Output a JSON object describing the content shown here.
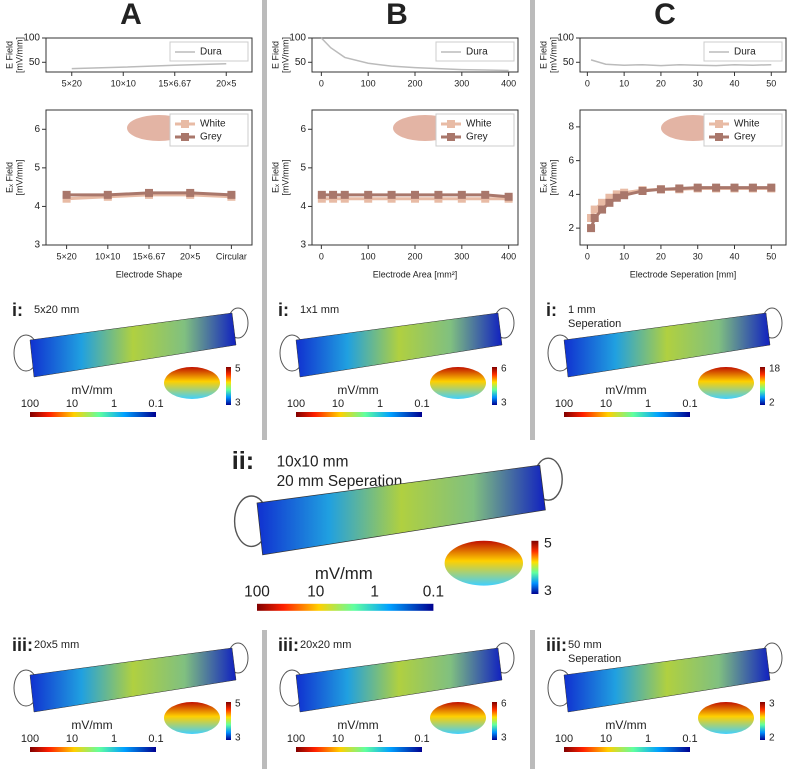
{
  "headers": [
    "A",
    "B",
    "C"
  ],
  "chart_data": [
    {
      "type": "line",
      "ylabel": [
        "E Field",
        "[mV/mm]"
      ],
      "categories": [
        "5×20",
        "10×10",
        "15×6.67",
        "20×5"
      ],
      "series": [
        {
          "name": "Dura",
          "color": "#bbbbbb",
          "values": [
            37,
            40,
            44,
            47
          ]
        }
      ],
      "ylim": [
        30,
        100
      ],
      "yticks": [
        50,
        100
      ],
      "legend": "upper right"
    },
    {
      "type": "line",
      "ylabel": [
        "Eₓ Field",
        "[mV/mm]"
      ],
      "xlabel": "Electrode Shape",
      "categories": [
        "5×20",
        "10×10",
        "15×6.67",
        "20×5",
        "Circular"
      ],
      "series": [
        {
          "name": "White",
          "color": "#e8bba5",
          "marker": "square",
          "values": [
            4.2,
            4.25,
            4.3,
            4.3,
            4.25
          ]
        },
        {
          "name": "Grey",
          "color": "#a9776b",
          "marker": "square",
          "values": [
            4.3,
            4.3,
            4.35,
            4.35,
            4.3
          ]
        }
      ],
      "ylim": [
        3,
        6.5
      ],
      "yticks": [
        3,
        4,
        5,
        6
      ],
      "legend": "upper right"
    },
    {
      "type": "line",
      "ylabel": [
        "E Field",
        "[mV/mm]"
      ],
      "x": [
        0,
        20,
        50,
        100,
        150,
        200,
        250,
        300,
        350,
        400
      ],
      "series": [
        {
          "name": "Dura",
          "color": "#bbbbbb",
          "values": [
            100,
            80,
            60,
            48,
            42,
            39,
            37,
            35,
            34,
            33
          ]
        }
      ],
      "xlim": [
        -20,
        420
      ],
      "xticks": [
        0,
        100,
        200,
        300,
        400
      ],
      "ylim": [
        30,
        100
      ],
      "yticks": [
        50,
        100
      ],
      "legend": "upper right"
    },
    {
      "type": "line",
      "ylabel": [
        "Eₓ Field",
        "[mV/mm]"
      ],
      "xlabel": "Electrode Area [mm²]",
      "x": [
        1,
        25,
        50,
        100,
        150,
        200,
        250,
        300,
        350,
        400
      ],
      "series": [
        {
          "name": "White",
          "color": "#e8bba5",
          "marker": "square",
          "values": [
            4.2,
            4.2,
            4.2,
            4.2,
            4.2,
            4.2,
            4.2,
            4.2,
            4.2,
            4.2
          ]
        },
        {
          "name": "Grey",
          "color": "#a9776b",
          "marker": "square",
          "values": [
            4.3,
            4.3,
            4.3,
            4.3,
            4.3,
            4.3,
            4.3,
            4.3,
            4.3,
            4.25
          ]
        }
      ],
      "xlim": [
        -20,
        420
      ],
      "xticks": [
        0,
        100,
        200,
        300,
        400
      ],
      "ylim": [
        3,
        6.5
      ],
      "yticks": [
        3,
        4,
        5,
        6
      ],
      "legend": "upper right"
    },
    {
      "type": "line",
      "ylabel": [
        "E Field",
        "[mV/mm]"
      ],
      "x": [
        1,
        5,
        10,
        15,
        20,
        25,
        30,
        35,
        40,
        45,
        50
      ],
      "series": [
        {
          "name": "Dura",
          "color": "#bbbbbb",
          "values": [
            55,
            46,
            44,
            45,
            43,
            45,
            44,
            43,
            45,
            44,
            45
          ]
        }
      ],
      "xlim": [
        -2,
        54
      ],
      "xticks": [
        0,
        10,
        20,
        30,
        40,
        50
      ],
      "ylim": [
        30,
        100
      ],
      "yticks": [
        50,
        100
      ],
      "legend": "upper right"
    },
    {
      "type": "line",
      "ylabel": [
        "Eₓ Field",
        "[mV/mm]"
      ],
      "xlabel": "Electrode Seperation [mm]",
      "x": [
        1,
        2,
        4,
        6,
        8,
        10,
        15,
        20,
        25,
        30,
        35,
        40,
        45,
        50
      ],
      "series": [
        {
          "name": "White",
          "color": "#e8bba5",
          "marker": "square",
          "values": [
            2.6,
            3.1,
            3.5,
            3.8,
            4.0,
            4.1,
            4.25,
            4.3,
            4.3,
            4.35,
            4.35,
            4.35,
            4.35,
            4.35
          ]
        },
        {
          "name": "Grey",
          "color": "#a9776b",
          "marker": "square",
          "values": [
            2.0,
            2.6,
            3.1,
            3.5,
            3.8,
            3.95,
            4.2,
            4.3,
            4.35,
            4.4,
            4.4,
            4.4,
            4.4,
            4.4
          ]
        }
      ],
      "xlim": [
        -2,
        54
      ],
      "xticks": [
        0,
        10,
        20,
        30,
        40,
        50
      ],
      "ylim": [
        1,
        9
      ],
      "yticks": [
        2,
        4,
        6,
        8
      ],
      "legend": "upper right"
    }
  ],
  "renders": [
    {
      "label": "i:",
      "caption": [
        "5x20 mm"
      ],
      "unit": "mV/mm",
      "scale": [
        100,
        10,
        1,
        0.1
      ],
      "range": [
        5,
        3
      ]
    },
    {
      "label": "i:",
      "caption": [
        "1x1 mm"
      ],
      "unit": "mV/mm",
      "scale": [
        100,
        10,
        1,
        0.1
      ],
      "range": [
        6,
        3
      ]
    },
    {
      "label": "i:",
      "caption": [
        "1 mm",
        "Seperation"
      ],
      "unit": "mV/mm",
      "scale": [
        100,
        10,
        1,
        0.1
      ],
      "range": [
        18,
        2
      ]
    },
    {
      "label": "ii:",
      "caption": [
        "10x10 mm",
        "20 mm Seperation"
      ],
      "unit": "mV/mm",
      "scale": [
        100,
        10,
        1,
        0.1
      ],
      "range": [
        5,
        3
      ]
    },
    {
      "label": "iii:",
      "caption": [
        "20x5 mm"
      ],
      "unit": "mV/mm",
      "scale": [
        100,
        10,
        1,
        0.1
      ],
      "range": [
        5,
        3
      ]
    },
    {
      "label": "iii:",
      "caption": [
        "20x20 mm"
      ],
      "unit": "mV/mm",
      "scale": [
        100,
        10,
        1,
        0.1
      ],
      "range": [
        6,
        3
      ]
    },
    {
      "label": "iii:",
      "caption": [
        "50 mm",
        "Seperation"
      ],
      "unit": "mV/mm",
      "scale": [
        100,
        10,
        1,
        0.1
      ],
      "range": [
        3,
        2
      ]
    }
  ]
}
